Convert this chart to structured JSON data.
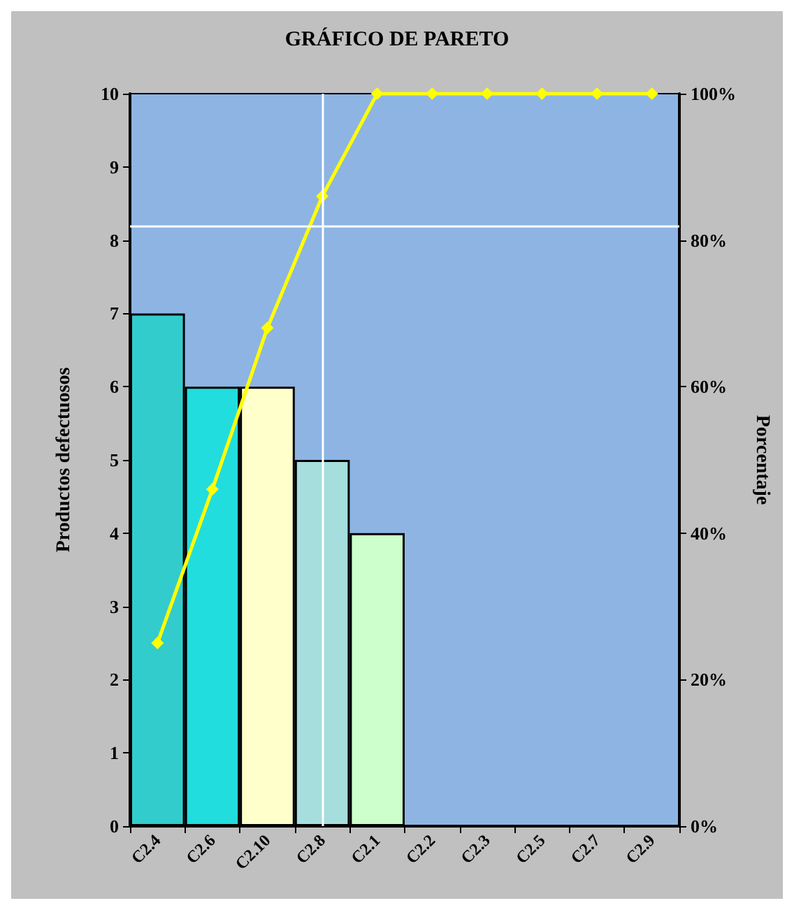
{
  "chart_data": {
    "type": "bar",
    "title": "GRÁFICO DE PARETO",
    "ylabel": "Productos defectuosos",
    "y2label": "Porcentaje",
    "categories": [
      "C2.4",
      "C2.6",
      "C2.10",
      "C2.8",
      "C2.1",
      "C2.2",
      "C2.3",
      "C2.5",
      "C2.7",
      "C2.9"
    ],
    "series": [
      {
        "colors": [
          "#33cccc",
          "#22dddd",
          "#ffffcc",
          "#a6dede",
          "#ccffcc",
          "#8eb4e3",
          "#8eb4e3",
          "#8eb4e3",
          "#8eb4e3",
          "#8eb4e3"
        ],
        "values": [
          7,
          6,
          6,
          5,
          4,
          0,
          0,
          0,
          0,
          0
        ]
      },
      {
        "type": "line",
        "axis": "y2",
        "color": "#ffff00",
        "marker": "diamond",
        "values": [
          25,
          46,
          68,
          86,
          100,
          100,
          100,
          100,
          100,
          100
        ]
      }
    ],
    "ylim": [
      0,
      10
    ],
    "yticks": [
      0,
      1,
      2,
      3,
      4,
      5,
      6,
      7,
      8,
      9,
      10
    ],
    "y2lim": [
      0,
      100
    ],
    "y2ticks": [
      {
        "value": 0,
        "label": "0%"
      },
      {
        "value": 20,
        "label": "20%"
      },
      {
        "value": 40,
        "label": "40%"
      },
      {
        "value": 60,
        "label": "60%"
      },
      {
        "value": 80,
        "label": "80%"
      },
      {
        "value": 100,
        "label": "100%"
      }
    ],
    "ref_lines": [
      {
        "axis": "y2",
        "value": 82,
        "color": "#ffffff"
      },
      {
        "axis": "x",
        "value": "C2.8",
        "color": "#ffffff"
      }
    ],
    "grid": false
  }
}
